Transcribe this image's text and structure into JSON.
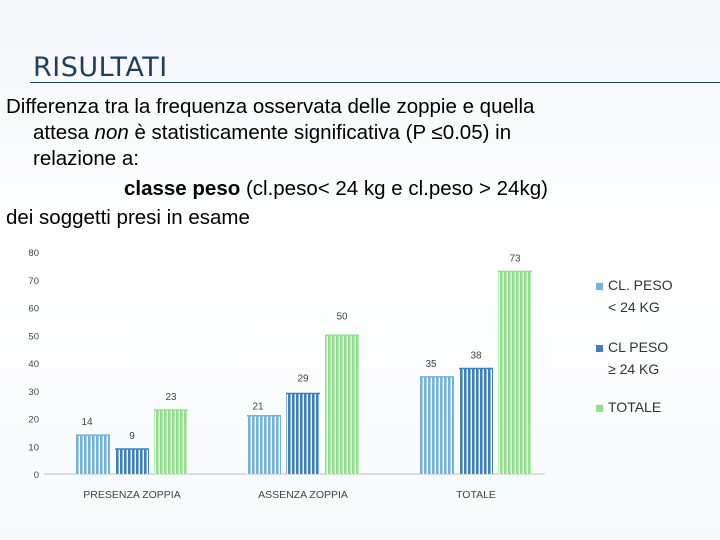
{
  "slide": {
    "title": "RISULTATI",
    "line1": "Differenza tra la frequenza osservata delle zoppie e quella",
    "line2_pre": "attesa ",
    "line2_italic": "non",
    "line2_post": " è statisticamente significativa (P ≤0.05) in",
    "line3": "relazione a:",
    "line4_bold": "classe peso",
    "line4_rest": " (cl.peso< 24 kg e cl.peso > 24kg)",
    "line5": "dei soggetti presi in esame"
  },
  "chart_data": {
    "type": "bar",
    "categories": [
      "PRESENZA ZOPPIA",
      "ASSENZA ZOPPIA",
      "TOTALE"
    ],
    "series": [
      {
        "name": "CL. PESO < 24 KG",
        "legend_lines": [
          "CL. PESO",
          "< 24 KG"
        ],
        "values": [
          14,
          21,
          35
        ],
        "color": "#74b1dc"
      },
      {
        "name": "CL PESO ≥ 24 KG",
        "legend_lines": [
          "CL PESO",
          "≥ 24 KG"
        ],
        "values": [
          9,
          29,
          38
        ],
        "color": "#3f7fbf"
      },
      {
        "name": "TOTALE",
        "legend_lines": [
          "TOTALE"
        ],
        "values": [
          23,
          50,
          73
        ],
        "color": "#8fe08a"
      }
    ],
    "ylim": [
      0,
      80
    ],
    "yticks": [
      0,
      10,
      20,
      30,
      40,
      50,
      60,
      70,
      80
    ],
    "grid": false,
    "legend": "right",
    "data_labels": true
  }
}
